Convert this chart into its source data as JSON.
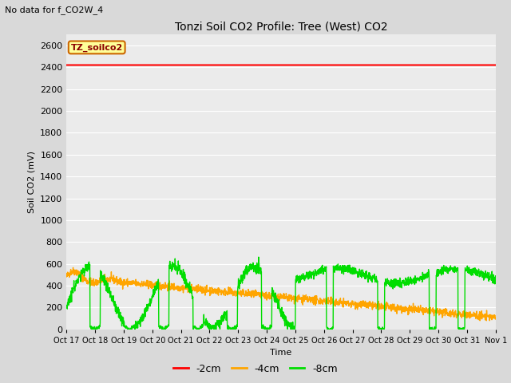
{
  "title": "Tonzi Soil CO2 Profile: Tree (West) CO2",
  "subtitle": "No data for f_CO2W_4",
  "ylabel": "Soil CO2 (mV)",
  "xlabel": "Time",
  "ylim": [
    0,
    2700
  ],
  "yticks": [
    0,
    200,
    400,
    600,
    800,
    1000,
    1200,
    1400,
    1600,
    1800,
    2000,
    2200,
    2400,
    2600
  ],
  "fig_bg_color": "#d9d9d9",
  "plot_bg_color": "#ebebeb",
  "legend_label": "TZ_soilco2",
  "legend_bg": "#ffff99",
  "legend_border": "#cc6600",
  "line_colors": {
    "neg2cm": "#ff0000",
    "neg4cm": "#ffa500",
    "neg8cm": "#00dd00"
  },
  "line_labels": {
    "neg2cm": "-2cm",
    "neg4cm": "-4cm",
    "neg8cm": "-8cm"
  },
  "x_tick_labels": [
    "Oct 17",
    "Oct 18",
    "Oct 19",
    "Oct 20",
    "Oct 21",
    "Oct 22",
    "Oct 23",
    "Oct 24",
    "Oct 25",
    "Oct 26",
    "Oct 27",
    "Oct 28",
    "Oct 29",
    "Oct 30",
    "Oct 31",
    "Nov 1"
  ],
  "neg2cm_value": 2420,
  "n_points": 2000
}
